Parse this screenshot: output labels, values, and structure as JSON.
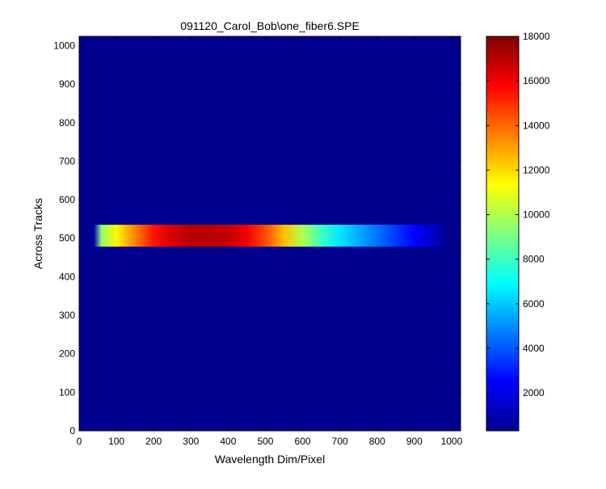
{
  "chart_data": {
    "type": "heatmap",
    "title": "091120_Carol_Bob\\one_fiber6.SPE",
    "xlabel": "Wavelength Dim/Pixel",
    "ylabel": "Across Tracks",
    "xlim": [
      0,
      1024
    ],
    "ylim": [
      0,
      1024
    ],
    "x_ticks": [
      0,
      100,
      200,
      300,
      400,
      500,
      600,
      700,
      800,
      900,
      1000
    ],
    "y_ticks": [
      0,
      100,
      200,
      300,
      400,
      500,
      600,
      700,
      800,
      900,
      1000
    ],
    "colorbar": {
      "colormap": "jet",
      "range": [
        300,
        18000
      ],
      "ticks": [
        2000,
        4000,
        6000,
        8000,
        10000,
        12000,
        14000,
        16000,
        18000
      ]
    },
    "background_value": 300,
    "band": {
      "x_range": [
        40,
        1000
      ],
      "y_range": [
        478,
        535
      ],
      "profile_x": [
        40,
        60,
        100,
        150,
        200,
        250,
        300,
        350,
        400,
        450,
        500,
        550,
        600,
        650,
        700,
        750,
        800,
        850,
        900,
        950,
        1000
      ],
      "profile_value": [
        1500,
        9500,
        11500,
        13500,
        15500,
        16500,
        17000,
        17000,
        16800,
        16000,
        14500,
        12500,
        10000,
        8000,
        6500,
        5500,
        4500,
        3500,
        2500,
        1500,
        300
      ]
    }
  }
}
